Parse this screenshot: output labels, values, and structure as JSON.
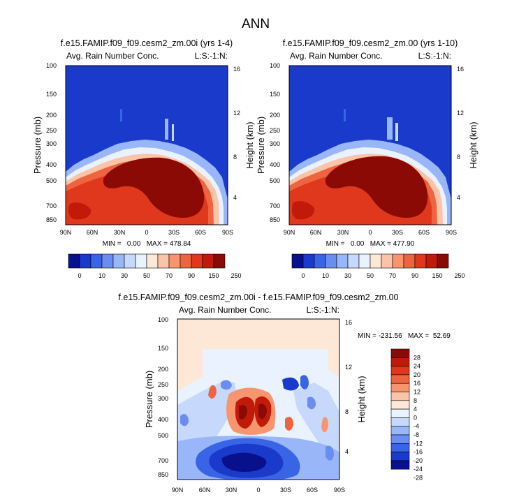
{
  "page_title": "ANN",
  "chart_data": [
    {
      "type": "heatmap",
      "panel": "top-left",
      "title": "f.e15.FAMIP.f09_f09.cesm2_zm.00i (yrs 1-4)",
      "subtitle_left": "Avg. Rain Number Conc.",
      "subtitle_right": "L:S:-1:N:",
      "xlabel": "",
      "ylabel": "Pressure (mb)",
      "ylabel_right": "Height (km)",
      "x_ticks": [
        "90N",
        "60N",
        "30N",
        "0",
        "30S",
        "60S",
        "90S"
      ],
      "y_ticks": [
        "100",
        "150",
        "200",
        "250",
        "300",
        "400",
        "500",
        "700",
        "850"
      ],
      "y2_ticks": [
        "16",
        "12",
        "8",
        "4"
      ],
      "stats_text": "MIN =   0.00   MAX = 478.84",
      "min": 0.0,
      "max": 478.84
    },
    {
      "type": "heatmap",
      "panel": "top-right",
      "title": "f.e15.FAMIP.f09_f09.cesm2_zm.00 (yrs 1-10)",
      "subtitle_left": "Avg. Rain Number Conc.",
      "subtitle_right": "L:S:-1:N:",
      "xlabel": "",
      "ylabel": "Pressure (mb)",
      "ylabel_right": "Height (km)",
      "x_ticks": [
        "90N",
        "60N",
        "30N",
        "0",
        "30S",
        "60S",
        "90S"
      ],
      "y_ticks": [
        "100",
        "150",
        "200",
        "250",
        "300",
        "400",
        "500",
        "700",
        "850"
      ],
      "y2_ticks": [
        "16",
        "12",
        "8",
        "4"
      ],
      "stats_text": "MIN =   0.00   MAX = 477.90",
      "min": 0.0,
      "max": 477.9
    },
    {
      "type": "heatmap",
      "panel": "bottom-difference",
      "title": "f.e15.FAMIP.f09_f09.cesm2_zm.00i - f.e15.FAMIP.f09_f09.cesm2_zm.00",
      "subtitle_left": "Avg. Rain Number Conc.",
      "subtitle_right": "L:S:-1:N:",
      "xlabel": "",
      "ylabel": "Pressure (mb)",
      "ylabel_right": "Height (km)",
      "x_ticks": [
        "90N",
        "60N",
        "30N",
        "0",
        "30S",
        "60S",
        "90S"
      ],
      "y_ticks": [
        "100",
        "150",
        "200",
        "250",
        "300",
        "400",
        "500",
        "700",
        "850"
      ],
      "y2_ticks": [
        "16",
        "12",
        "8",
        "4"
      ],
      "stats_text": "MIN = -231.56   MAX =  52.69",
      "min": -231.56,
      "max": 52.69
    }
  ],
  "colorbar_top": {
    "labels": [
      "0",
      "10",
      "30",
      "50",
      "70",
      "90",
      "150",
      "250"
    ],
    "colors": [
      "#08108c",
      "#1a3acc",
      "#3a64e6",
      "#6a8ef0",
      "#98b6f8",
      "#c6d8fc",
      "#eaf2ff",
      "#fde8d8",
      "#fbc4a8",
      "#f7956e",
      "#ef6440",
      "#e0381c",
      "#c01a0a",
      "#8c0a06"
    ]
  },
  "colorbar_diff": {
    "labels": [
      "28",
      "24",
      "20",
      "16",
      "12",
      "8",
      "4",
      "0",
      "-4",
      "-8",
      "-12",
      "-16",
      "-20",
      "-24",
      "-28"
    ],
    "colors": [
      "#8c0a06",
      "#c01a0a",
      "#e0381c",
      "#ef6440",
      "#f7956e",
      "#fbc4a8",
      "#fde8d8",
      "#eaf2ff",
      "#c6d8fc",
      "#98b6f8",
      "#6a8ef0",
      "#3a64e6",
      "#1a3acc",
      "#08108c"
    ]
  }
}
